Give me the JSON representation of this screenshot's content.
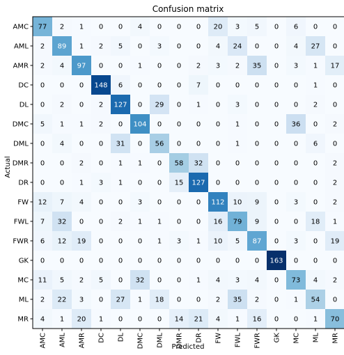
{
  "chart_data": {
    "type": "heatmap",
    "title": "Confusion matrix",
    "xlabel": "Predicted",
    "ylabel": "Actual",
    "colormap": "Blues",
    "labels": [
      "AMC",
      "AML",
      "AMR",
      "DC",
      "DL",
      "DMC",
      "DML",
      "DMR",
      "DR",
      "FW",
      "FWL",
      "FWR",
      "GK",
      "MC",
      "ML",
      "MR"
    ],
    "matrix": [
      [
        77,
        2,
        1,
        0,
        0,
        4,
        0,
        0,
        0,
        20,
        3,
        5,
        0,
        6,
        0,
        0
      ],
      [
        2,
        89,
        1,
        2,
        5,
        0,
        3,
        0,
        0,
        4,
        24,
        0,
        0,
        4,
        27,
        0
      ],
      [
        2,
        4,
        97,
        0,
        0,
        1,
        0,
        0,
        2,
        3,
        2,
        35,
        0,
        3,
        1,
        17
      ],
      [
        0,
        0,
        0,
        148,
        6,
        0,
        0,
        0,
        7,
        0,
        0,
        0,
        0,
        0,
        1,
        0
      ],
      [
        0,
        2,
        0,
        2,
        127,
        0,
        29,
        0,
        1,
        0,
        3,
        0,
        0,
        0,
        2,
        0
      ],
      [
        5,
        1,
        1,
        2,
        0,
        104,
        0,
        0,
        0,
        0,
        1,
        0,
        0,
        36,
        0,
        2
      ],
      [
        0,
        4,
        0,
        0,
        31,
        0,
        56,
        0,
        0,
        0,
        1,
        0,
        0,
        0,
        6,
        0
      ],
      [
        0,
        0,
        2,
        0,
        1,
        1,
        0,
        58,
        32,
        0,
        0,
        0,
        0,
        0,
        0,
        2
      ],
      [
        0,
        0,
        1,
        3,
        1,
        0,
        0,
        15,
        127,
        0,
        0,
        0,
        0,
        0,
        0,
        2
      ],
      [
        12,
        7,
        4,
        0,
        0,
        3,
        0,
        0,
        0,
        112,
        10,
        9,
        0,
        3,
        0,
        2
      ],
      [
        7,
        32,
        0,
        0,
        2,
        1,
        1,
        0,
        0,
        16,
        79,
        9,
        0,
        0,
        18,
        1
      ],
      [
        6,
        12,
        19,
        0,
        0,
        0,
        1,
        3,
        1,
        10,
        5,
        87,
        0,
        3,
        0,
        19
      ],
      [
        0,
        0,
        0,
        0,
        0,
        0,
        0,
        0,
        0,
        0,
        0,
        0,
        163,
        0,
        0,
        0
      ],
      [
        11,
        5,
        2,
        5,
        0,
        32,
        0,
        0,
        1,
        4,
        3,
        4,
        0,
        73,
        4,
        2
      ],
      [
        2,
        22,
        3,
        0,
        27,
        1,
        18,
        0,
        0,
        2,
        35,
        2,
        0,
        1,
        54,
        0
      ],
      [
        4,
        1,
        20,
        1,
        0,
        0,
        0,
        14,
        21,
        4,
        1,
        16,
        0,
        0,
        1,
        70
      ]
    ],
    "vmin": 0,
    "vmax": 163
  }
}
